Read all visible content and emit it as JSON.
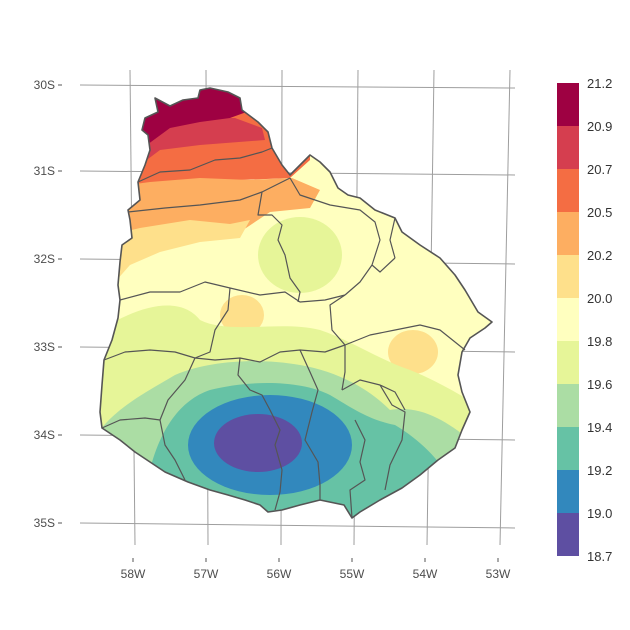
{
  "map": {
    "lat_labels": [
      "30S",
      "31S",
      "32S",
      "33S",
      "34S",
      "35S"
    ],
    "lon_labels": [
      "58W",
      "57W",
      "56W",
      "55W",
      "54W",
      "53W"
    ]
  },
  "legend": {
    "breaks": [
      "21.2",
      "20.9",
      "20.7",
      "20.5",
      "20.2",
      "20.0",
      "19.8",
      "19.6",
      "19.4",
      "19.2",
      "19.0",
      "18.7"
    ],
    "colors": [
      "#9e0142",
      "#d53e4f",
      "#f46d43",
      "#fdae61",
      "#fee08b",
      "#ffffbf",
      "#e6f598",
      "#abdda4",
      "#66c2a5",
      "#3288bd",
      "#5e4fa2"
    ]
  }
}
